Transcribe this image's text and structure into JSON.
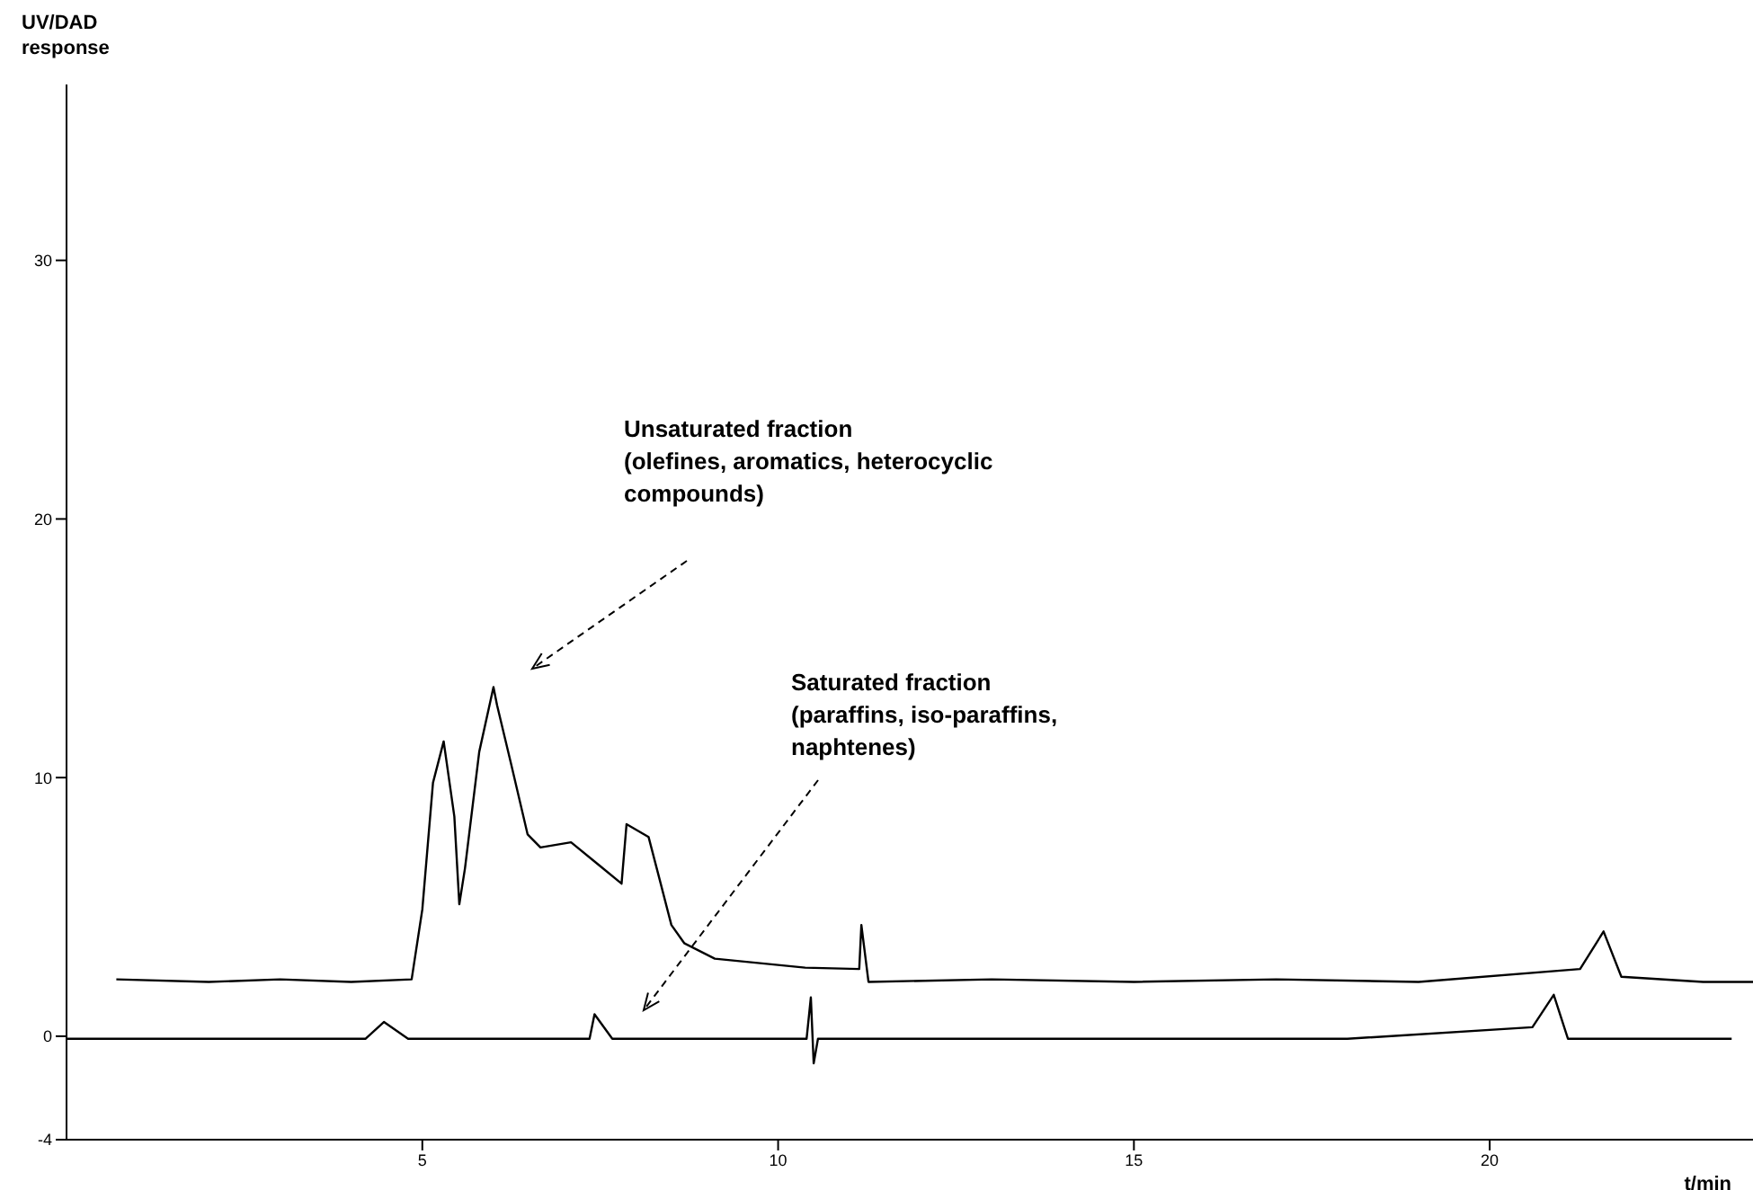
{
  "chart_data": {
    "type": "line",
    "ylabel": "UV/DAD response",
    "xlabel": "t/min",
    "xlim": [
      0,
      23.7
    ],
    "xticks": [
      5,
      10,
      15,
      20
    ],
    "ylim": [
      -4,
      36.8
    ],
    "yticks": [
      -4,
      0,
      10,
      20,
      30
    ],
    "marker": "none",
    "line_style": "solid",
    "series": [
      {
        "color": "#000000",
        "x": [
          0.7,
          2,
          3,
          4,
          4.85,
          5.0,
          5.15,
          5.3,
          5.45,
          5.52,
          5.6,
          5.8,
          6.0,
          6.05,
          6.25,
          6.48,
          6.66,
          7.09,
          7.49,
          7.8,
          7.87,
          8.18,
          8.35,
          8.5,
          8.68,
          9.11,
          10.38,
          11.14,
          11.17,
          11.27,
          13,
          15,
          17,
          19,
          21.27,
          21.6,
          21.85,
          23,
          23.7
        ],
        "values": [
          2.2,
          2.1,
          2.2,
          2.1,
          2.2,
          4.9,
          9.8,
          11.4,
          8.5,
          5.1,
          6.5,
          11,
          13.5,
          12.8,
          10.5,
          7.8,
          7.3,
          7.5,
          6.6,
          5.9,
          8.2,
          7.7,
          5.9,
          4.3,
          3.6,
          3.0,
          2.65,
          2.6,
          4.3,
          2.1,
          2.2,
          2.1,
          2.2,
          2.1,
          2.6,
          4.05,
          2.3,
          2.1,
          2.1
        ]
      },
      {
        "color": "#000000",
        "x": [
          0,
          2,
          4.2,
          4.46,
          4.8,
          6,
          7.35,
          7.42,
          7.67,
          9,
          10.4,
          10.46,
          10.5,
          10.56,
          12,
          15,
          18,
          20.6,
          20.9,
          21.1,
          22,
          23.4
        ],
        "values": [
          -0.1,
          -0.1,
          -0.1,
          0.55,
          -0.1,
          -0.1,
          -0.1,
          0.85,
          -0.1,
          -0.1,
          -0.1,
          1.5,
          -1.05,
          -0.1,
          -0.1,
          -0.1,
          -0.1,
          0.35,
          1.6,
          -0.1,
          -0.1,
          -0.1
        ]
      }
    ],
    "annotations": [
      "Unsaturated fraction\n(olefines, aromatics, heterocyclic\ncompounds)",
      "Saturated fraction\n(paraffins, iso-paraffins,\nnaphtenes)"
    ]
  }
}
